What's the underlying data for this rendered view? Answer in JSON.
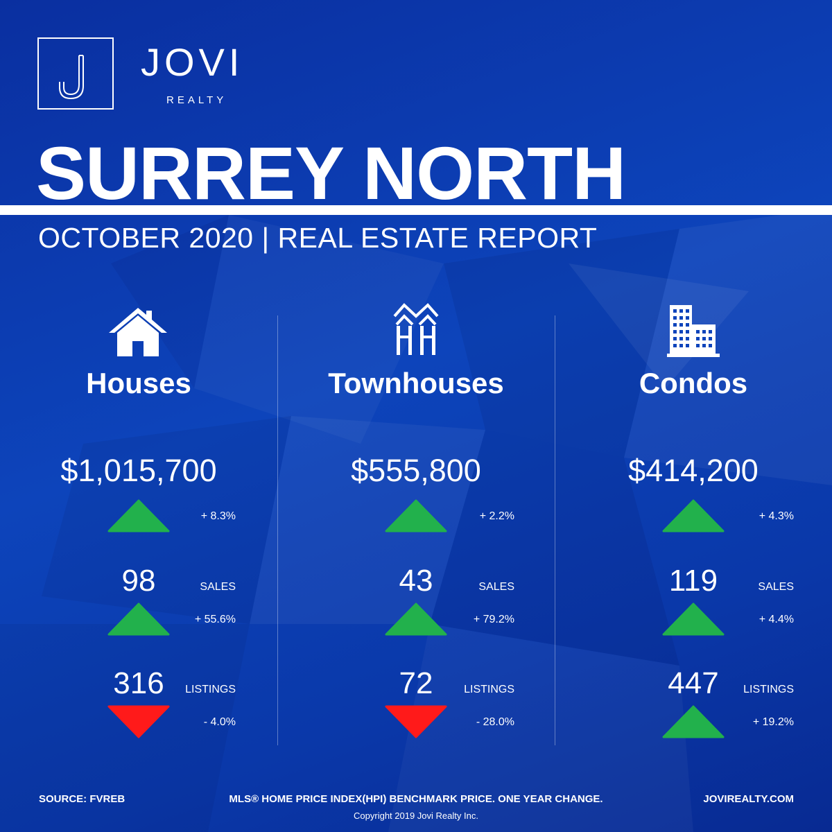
{
  "brand": {
    "name": "JOVI",
    "sub": "REALTY"
  },
  "report": {
    "title": "SURREY NORTH",
    "subtitle": "OCTOBER 2020 | REAL ESTATE REPORT"
  },
  "categories": [
    {
      "label": "Houses",
      "icon": "house-icon",
      "price": "$1,015,700",
      "price_change": "+ 8.3%",
      "price_trend": "up",
      "sales": "98",
      "sales_label": "SALES",
      "sales_change": "+ 55.6%",
      "sales_trend": "up",
      "listings": "316",
      "listings_label": "LISTINGS",
      "listings_change": "- 4.0%",
      "listings_trend": "down"
    },
    {
      "label": "Townhouses",
      "icon": "townhouse-icon",
      "price": "$555,800",
      "price_change": "+ 2.2%",
      "price_trend": "up",
      "sales": "43",
      "sales_label": "SALES",
      "sales_change": "+ 79.2%",
      "sales_trend": "up",
      "listings": "72",
      "listings_label": "LISTINGS",
      "listings_change": "- 28.0%",
      "listings_trend": "down"
    },
    {
      "label": "Condos",
      "icon": "condo-building-icon",
      "price": "$414,200",
      "price_change": "+ 4.3%",
      "price_trend": "up",
      "sales": "119",
      "sales_label": "SALES",
      "sales_change": "+ 4.4%",
      "sales_trend": "up",
      "listings": "447",
      "listings_label": "LISTINGS",
      "listings_change": "+ 19.2%",
      "listings_trend": "up"
    }
  ],
  "footer": {
    "source": "SOURCE:  FVREB",
    "note": "MLS® HOME PRICE INDEX(HPI) BENCHMARK PRICE. ONE YEAR CHANGE.",
    "website": "JOVIREALTY.COM",
    "copyright": "Copyright 2019 Jovi Realty Inc."
  },
  "colors": {
    "up": "#22b14c",
    "down": "#ff1a1a",
    "background": "#0a3aa8"
  }
}
